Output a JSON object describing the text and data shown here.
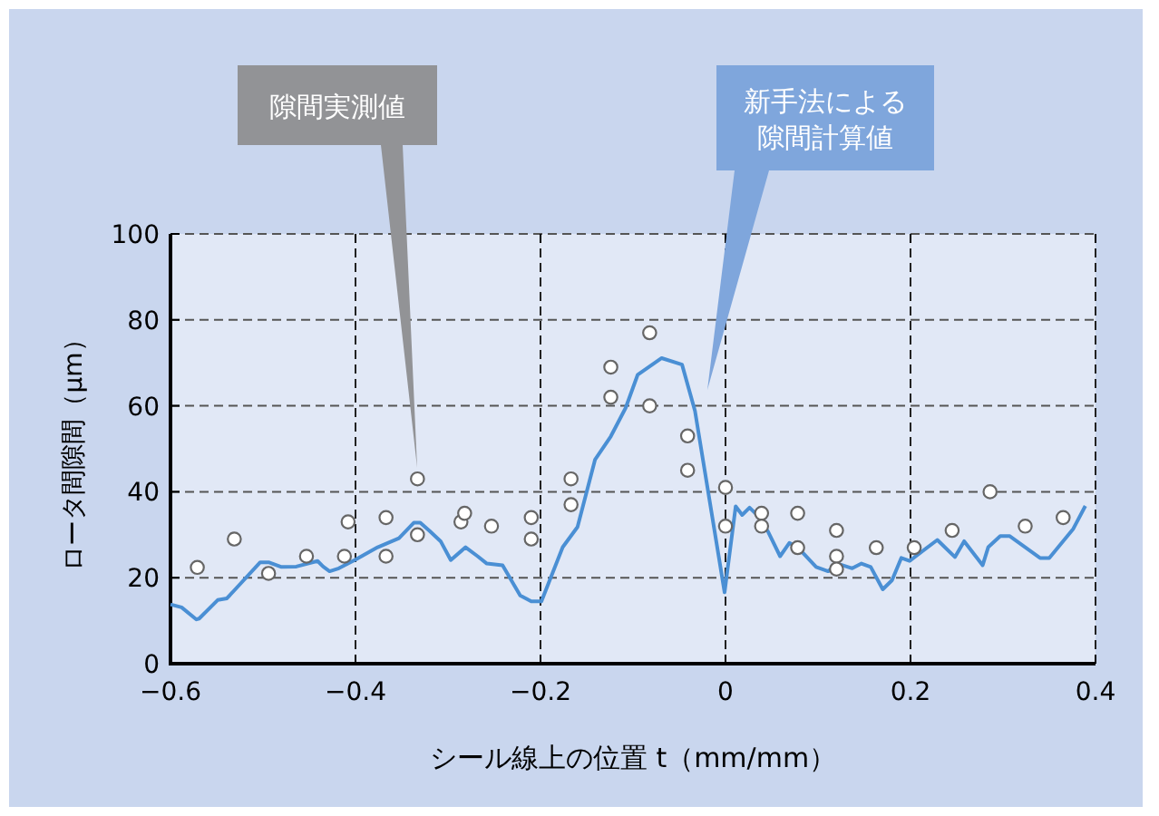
{
  "chart_data": {
    "type": "line",
    "xlabel": "シール線上の位置 t（mm/mm）",
    "ylabel": "ロータ間隙間（μm）",
    "xlim": [
      -0.6,
      0.4
    ],
    "ylim": [
      0,
      100
    ],
    "xticks": [
      {
        "value": -0.6,
        "label": "−0.6"
      },
      {
        "value": -0.4,
        "label": "−0.4"
      },
      {
        "value": -0.2,
        "label": "−0.2"
      },
      0,
      0.2,
      0.4
    ],
    "yticks": [
      0,
      20,
      40,
      60,
      80,
      100
    ],
    "grid": true,
    "series": [
      {
        "color": "#4a8fd4",
        "marker": "none",
        "x": [
          -0.6,
          -0.588,
          -0.572,
          -0.569,
          -0.549,
          -0.539,
          -0.503,
          -0.494,
          -0.48,
          -0.464,
          -0.441,
          -0.435,
          -0.428,
          -0.418,
          -0.4,
          -0.376,
          -0.353,
          -0.337,
          -0.33,
          -0.32,
          -0.308,
          -0.297,
          -0.281,
          -0.268,
          -0.258,
          -0.241,
          -0.222,
          -0.21,
          -0.199,
          -0.176,
          -0.16,
          -0.141,
          -0.124,
          -0.108,
          -0.095,
          -0.069,
          -0.047,
          -0.033,
          -0.001,
          0.011,
          0.018,
          0.026,
          0.036,
          0.046,
          0.059,
          0.069,
          0.078,
          0.098,
          0.111,
          0.121,
          0.137,
          0.147,
          0.157,
          0.17,
          0.18,
          0.19,
          0.199,
          0.229,
          0.248,
          0.258,
          0.278,
          0.284,
          0.297,
          0.307,
          0.34,
          0.35,
          0.376,
          0.389
        ],
        "values": [
          13.8,
          13.1,
          10.3,
          10.5,
          14.8,
          15.2,
          23.6,
          23.6,
          22.5,
          22.6,
          23.9,
          22.6,
          21.5,
          22.2,
          24.2,
          27.1,
          29.2,
          32.8,
          32.8,
          30.9,
          28.5,
          24.1,
          27.1,
          25.0,
          23.3,
          22.9,
          15.9,
          14.5,
          14.5,
          27.1,
          31.8,
          47.5,
          52.9,
          59.5,
          67.2,
          71.1,
          69.6,
          58.8,
          16.6,
          36.6,
          34.6,
          36.3,
          34.2,
          30.7,
          25.0,
          28.1,
          27.1,
          22.5,
          21.5,
          23.3,
          22.2,
          23.3,
          22.5,
          17.3,
          19.4,
          24.6,
          23.9,
          28.8,
          24.8,
          28.5,
          22.9,
          27.1,
          29.7,
          29.7,
          24.6,
          24.6,
          31.4,
          36.7
        ]
      },
      {
        "type": "scatter",
        "color": "#ffffff",
        "marker": "circle",
        "x": [
          -0.571,
          -0.531,
          -0.494,
          -0.453,
          -0.412,
          -0.408,
          -0.367,
          -0.367,
          -0.333,
          -0.333,
          -0.286,
          -0.282,
          -0.253,
          -0.21,
          -0.21,
          -0.167,
          -0.167,
          -0.124,
          -0.124,
          -0.082,
          -0.082,
          -0.041,
          -0.041,
          0,
          0,
          0.039,
          0.039,
          0.078,
          0.078,
          0.12,
          0.12,
          0.12,
          0.163,
          0.204,
          0.245,
          0.286,
          0.324,
          0.365
        ],
        "values": [
          22.4,
          29,
          21,
          25,
          25,
          33,
          34,
          25,
          43,
          30,
          33,
          35,
          32,
          34,
          29,
          43,
          37,
          69,
          62,
          77,
          60,
          53,
          45,
          41,
          32,
          35,
          32,
          35,
          27,
          31,
          25,
          22,
          27,
          27,
          31,
          40,
          32,
          34
        ]
      }
    ],
    "annotations": [
      "隙間実測値",
      "新手法による隙間計算値"
    ]
  }
}
